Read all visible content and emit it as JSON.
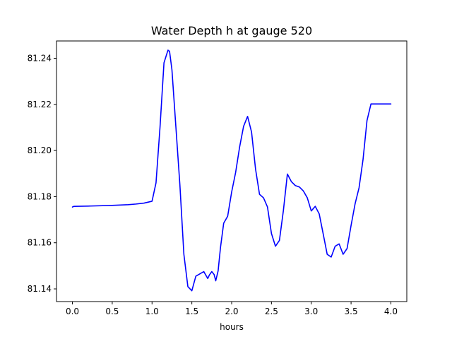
{
  "chart_data": {
    "type": "line",
    "title": "Water Depth h at gauge 520",
    "xlabel": "hours",
    "ylabel": "",
    "xlim": [
      -0.2,
      4.2
    ],
    "ylim": [
      81.1345,
      81.2475
    ],
    "grid": false,
    "legend": "none",
    "xticks": [
      0.0,
      0.5,
      1.0,
      1.5,
      2.0,
      2.5,
      3.0,
      3.5,
      4.0
    ],
    "xtick_labels": [
      "0.0",
      "0.5",
      "1.0",
      "1.5",
      "2.0",
      "2.5",
      "3.0",
      "3.5",
      "4.0"
    ],
    "yticks": [
      81.14,
      81.16,
      81.18,
      81.2,
      81.22,
      81.24
    ],
    "ytick_labels": [
      "81.14",
      "81.16",
      "81.18",
      "81.20",
      "81.22",
      "81.24"
    ],
    "series": [
      {
        "color": "#0000ff",
        "x": [
          0.0,
          0.02,
          0.2,
          0.5,
          0.7,
          0.8,
          0.9,
          1.0,
          1.05,
          1.1,
          1.15,
          1.2,
          1.22,
          1.25,
          1.3,
          1.35,
          1.4,
          1.45,
          1.5,
          1.55,
          1.6,
          1.65,
          1.7,
          1.72,
          1.75,
          1.78,
          1.8,
          1.83,
          1.86,
          1.9,
          1.95,
          2.0,
          2.05,
          2.1,
          2.15,
          2.2,
          2.25,
          2.3,
          2.35,
          2.4,
          2.45,
          2.5,
          2.55,
          2.6,
          2.65,
          2.7,
          2.75,
          2.8,
          2.85,
          2.9,
          2.95,
          3.0,
          3.05,
          3.1,
          3.15,
          3.2,
          3.25,
          3.3,
          3.35,
          3.4,
          3.45,
          3.5,
          3.55,
          3.6,
          3.65,
          3.7,
          3.75,
          3.8,
          3.85,
          3.9,
          3.95,
          4.0
        ],
        "y": [
          81.1755,
          81.1758,
          81.1759,
          81.1762,
          81.1765,
          81.1768,
          81.1772,
          81.178,
          81.186,
          81.21,
          81.238,
          81.2435,
          81.243,
          81.235,
          81.21,
          81.185,
          81.155,
          81.141,
          81.1392,
          81.1455,
          81.1465,
          81.1475,
          81.1445,
          81.146,
          81.1475,
          81.1462,
          81.1435,
          81.1478,
          81.158,
          81.1685,
          81.1715,
          81.182,
          81.1905,
          81.2015,
          81.2105,
          81.2148,
          81.208,
          81.192,
          81.181,
          81.1795,
          81.1755,
          81.164,
          81.1585,
          81.161,
          81.174,
          81.1898,
          81.1865,
          81.1848,
          81.1842,
          81.1825,
          81.1795,
          81.1738,
          81.1758,
          81.1725,
          81.1638,
          81.155,
          81.1538,
          81.1585,
          81.1595,
          81.155,
          81.1575,
          81.1675,
          81.1768,
          81.1838,
          81.196,
          81.213,
          81.2202,
          81.2202,
          81.2202,
          81.2202,
          81.2202,
          81.2202
        ]
      }
    ]
  }
}
